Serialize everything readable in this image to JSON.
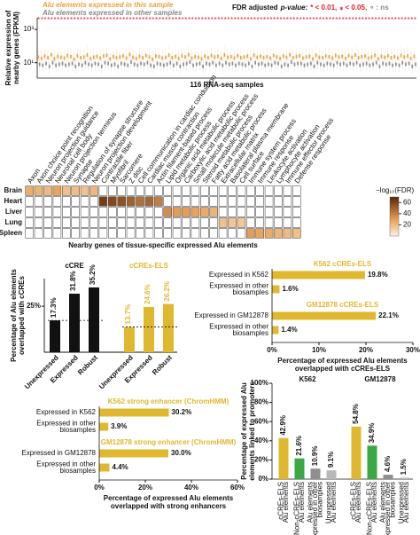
{
  "chart_data": [
    {
      "type": "box",
      "log": true,
      "legend_title": [
        "Alu elements expressed in this sample",
        "Alu elements expressed in other samples"
      ],
      "fdr_legend": [
        "FDR adjusted",
        "p-value:",
        "* < 0.01,",
        "⁎ < 0.05,",
        "∘ : ns"
      ],
      "fdr_marks": "********************************************************************************************************************",
      "ylabel": [
        "Relative expression of",
        "nearby genes (FPKM)"
      ],
      "xlabel": "116 RNA-seq samples",
      "ylim": [
        1.2,
        5000
      ],
      "yticks": [
        {
          "value": 1000,
          "label": "10³"
        },
        {
          "value": 10,
          "label": "10¹"
        }
      ],
      "series": [
        {
          "name": "Alu elements expressed in this sample",
          "color": "#e8a33d",
          "values": [
            22,
            18,
            25,
            20,
            30,
            17,
            24,
            21,
            19,
            27,
            23,
            16,
            26,
            20,
            22,
            29,
            18,
            21,
            24,
            19,
            25,
            28,
            17,
            23,
            20,
            22,
            26,
            19,
            31,
            21,
            18,
            24,
            20,
            27,
            22,
            16,
            25,
            23,
            19,
            21,
            28,
            20,
            24,
            18,
            26,
            22,
            30,
            19,
            23,
            21,
            17,
            25,
            20,
            27,
            22,
            24,
            18,
            29,
            21,
            23,
            19,
            26,
            20,
            22,
            25,
            17,
            28,
            21,
            24,
            20,
            23,
            19,
            27,
            22,
            18,
            25,
            21,
            30,
            20,
            23,
            26,
            19,
            22,
            24,
            17,
            28,
            21,
            20,
            25,
            23,
            19,
            27,
            22,
            24,
            18,
            26,
            21,
            29,
            20,
            23,
            25,
            19,
            22,
            28,
            17,
            24,
            21,
            26,
            20,
            23,
            19,
            27,
            22,
            25,
            18,
            24
          ]
        },
        {
          "name": "Alu elements expressed in other samples",
          "color": "#8a8a8a",
          "values": [
            8,
            7,
            9,
            6,
            10,
            7,
            8,
            9,
            7,
            8,
            9,
            6,
            8,
            7,
            10,
            8,
            7,
            9,
            8,
            6,
            10,
            9,
            7,
            8,
            6,
            9,
            8,
            7,
            11,
            8,
            7,
            9,
            8,
            10,
            7,
            6,
            9,
            8,
            7,
            8,
            10,
            7,
            9,
            6,
            8,
            9,
            11,
            7,
            8,
            9,
            6,
            9,
            8,
            10,
            7,
            9,
            7,
            10,
            8,
            9,
            7,
            9,
            8,
            7,
            9,
            6,
            10,
            8,
            9,
            7,
            8,
            7,
            10,
            9,
            6,
            8,
            7,
            11,
            8,
            9,
            9,
            7,
            8,
            9,
            6,
            10,
            8,
            7,
            9,
            8,
            7,
            10,
            8,
            9,
            7,
            9,
            8,
            10,
            7,
            8,
            9,
            7,
            8,
            10,
            6,
            9,
            8,
            9,
            7,
            8,
            7,
            10,
            8,
            9,
            6,
            8
          ]
        }
      ]
    },
    {
      "type": "heatmap",
      "columns": [
        "Axon",
        "Axon choice point recognition",
        "Neuron projection guidance",
        "Neuronal cell body",
        "Neuron projection terminus",
        "Synapse",
        "Regulation of synapse structure",
        "Neuron projection development",
        "Contractile fiber",
        "Myofibril",
        "Sarcomere",
        "Z disc",
        "Cell communication in cardiac conduction",
        "Cardiac muscle contraction",
        "Actin filament-based process",
        "Lipid metabolic process",
        "Organic acid metabolic process",
        "Carboxylic acid metabolic process",
        "Small molecule metabolic process",
        "Steroid metabolic process",
        "Fatty acid metabolic process",
        "Extracellular matrix",
        "Basolateral plasma membrane",
        "Cell surface",
        "Immune system process",
        "Immune response",
        "Leukocyte activation",
        "Lymphocyte activation",
        "Immune effector process",
        "Defense response"
      ],
      "rows": [
        "Brain",
        "Heart",
        "Liver",
        "Lung",
        "Spleen"
      ],
      "values": [
        [
          24,
          22,
          20,
          28,
          18,
          19,
          17,
          21,
          null,
          null,
          null,
          null,
          null,
          null,
          null,
          null,
          null,
          null,
          null,
          null,
          null,
          null,
          null,
          null,
          null,
          null,
          null,
          null,
          null,
          null
        ],
        [
          null,
          null,
          null,
          null,
          null,
          null,
          null,
          null,
          62,
          58,
          55,
          50,
          45,
          48,
          40,
          null,
          null,
          null,
          null,
          null,
          null,
          null,
          null,
          null,
          null,
          null,
          null,
          null,
          null,
          null
        ],
        [
          null,
          null,
          null,
          null,
          null,
          null,
          null,
          null,
          null,
          null,
          null,
          null,
          null,
          null,
          null,
          35,
          30,
          30,
          28,
          25,
          22,
          null,
          null,
          null,
          null,
          null,
          null,
          null,
          null,
          null
        ],
        [
          null,
          null,
          null,
          null,
          null,
          null,
          null,
          null,
          null,
          null,
          null,
          null,
          null,
          null,
          null,
          null,
          null,
          null,
          null,
          null,
          null,
          18,
          16,
          15,
          null,
          null,
          null,
          null,
          null,
          null
        ],
        [
          null,
          null,
          null,
          null,
          null,
          null,
          null,
          null,
          null,
          null,
          null,
          null,
          null,
          null,
          null,
          null,
          null,
          null,
          null,
          null,
          null,
          null,
          null,
          null,
          30,
          28,
          25,
          22,
          20,
          18
        ]
      ],
      "clim": [
        0,
        70
      ],
      "cticks": [
        60,
        40,
        20
      ],
      "colorbar_label": "−log₁₀(FDR)",
      "xlabel": "Nearby genes of tissue-specific expressed Alu elements"
    },
    {
      "type": "bar",
      "title": "cCRE",
      "color": "#111111",
      "ylabel": [
        "Percentage of Alu elements",
        "overlapped with cCREs"
      ],
      "categories": [
        "Unexpressed",
        "Expressed",
        "Robust"
      ],
      "values": [
        17.3,
        31.8,
        35.2
      ],
      "value_labels": [
        "17.3%",
        "31.8%",
        "35.2%"
      ],
      "ylim": [
        0,
        40
      ],
      "yticks": [
        {
          "value": 25,
          "label": "25%"
        }
      ],
      "reference_line": true
    },
    {
      "type": "bar",
      "title": "cCREs-ELS",
      "color": "#e0b830",
      "categories": [
        "Unexpressed",
        "Expressed",
        "Robust"
      ],
      "values": [
        13.7,
        24.6,
        26.2
      ],
      "value_labels": [
        "13.7%",
        "24.6%",
        "26.2%"
      ],
      "ylim": [
        0,
        40
      ],
      "reference_line": true
    },
    {
      "type": "hbar",
      "color": "#e0b830",
      "groups": [
        {
          "title": "K562 cCREs-ELS",
          "categories": [
            [
              "Expressed in K562"
            ],
            [
              "Expressed in other",
              "biosamples"
            ]
          ],
          "values": [
            19.8,
            1.6
          ],
          "value_labels": [
            "19.8%",
            "1.6%"
          ]
        },
        {
          "title": "GM12878 cCREs-ELS",
          "categories": [
            [
              "Expressed in GM12878"
            ],
            [
              "Expressed in other",
              "biosamples"
            ]
          ],
          "values": [
            22.1,
            1.4
          ],
          "value_labels": [
            "22.1%",
            "1.4%"
          ]
        }
      ],
      "xlim": [
        0,
        30
      ],
      "xticks": [
        {
          "value": 0,
          "label": "0%"
        },
        {
          "value": 10,
          "label": "10%"
        },
        {
          "value": 20,
          "label": "20%"
        },
        {
          "value": 30,
          "label": "30%"
        }
      ],
      "xlabel": [
        "Percentage of expressed Alu elements",
        "overlapped with cCREs-ELS"
      ]
    },
    {
      "type": "hbar",
      "color": "#e0b830",
      "groups": [
        {
          "title": "K562 strong enhancer (ChromHMM)",
          "categories": [
            [
              "Expressed in K562"
            ],
            [
              "Expressed in other",
              "biosamples"
            ]
          ],
          "values": [
            30.2,
            3.9
          ],
          "value_labels": [
            "30.2%",
            "3.9%"
          ]
        },
        {
          "title": "GM12878 strong enhancer (ChromHMM)",
          "categories": [
            [
              "Expressed in GM12878"
            ],
            [
              "Expressed in other",
              "biosamples"
            ]
          ],
          "values": [
            30.0,
            4.4
          ],
          "value_labels": [
            "30.0%",
            "4.4%"
          ]
        }
      ],
      "xlim": [
        0,
        60
      ],
      "xticks": [
        {
          "value": 0,
          "label": "0%"
        },
        {
          "value": 20,
          "label": "20%"
        },
        {
          "value": 40,
          "label": "40%"
        },
        {
          "value": 60,
          "label": "60%"
        }
      ],
      "xlabel": [
        "Percentage of expressed Alu elements",
        "overlapped with strong enhancers"
      ]
    },
    {
      "type": "groupbar",
      "ylabel": [
        "Percentage of expressed Alu",
        "elements linked to promoters"
      ],
      "colors": [
        "#e0b830",
        "#3aa845",
        "#8f8f8f",
        "#b8b8b8"
      ],
      "groups": [
        {
          "title": "K562",
          "categories": [
            [
              "cCREs-ELS",
              "Alu elements"
            ],
            [
              "Non-cCREs-ELS",
              "Alu elements"
            ],
            [
              "Alu elements",
              "expressed in other",
              "biosamples"
            ],
            [
              "Unexpressed",
              "Alu elements"
            ]
          ],
          "values": [
            42.9,
            21.6,
            10.9,
            9.1
          ],
          "value_labels": [
            "42.9%",
            "21.6%",
            "10.9%",
            "9.1%"
          ]
        },
        {
          "title": "GM12878",
          "categories": [
            [
              "cCREs-ELS",
              "Alu elements"
            ],
            [
              "Non-cCREs-ELS",
              "Alu elements"
            ],
            [
              "Alu elements",
              "expressed in other",
              "biosamples"
            ],
            [
              "Unexpressed",
              "Alu elements"
            ]
          ],
          "values": [
            54.8,
            34.9,
            4.6,
            1.5
          ],
          "value_labels": [
            "54.8%",
            "34.9%",
            "4.6%",
            "1.5%"
          ]
        }
      ],
      "ylim": [
        0,
        100
      ],
      "yticks": [
        {
          "value": 0,
          "label": "0%"
        },
        {
          "value": 20,
          "label": "20%"
        },
        {
          "value": 40,
          "label": "40%"
        },
        {
          "value": 60,
          "label": "60%"
        },
        {
          "value": 80,
          "label": "80%"
        },
        {
          "value": 100,
          "label": "100%"
        }
      ]
    }
  ]
}
